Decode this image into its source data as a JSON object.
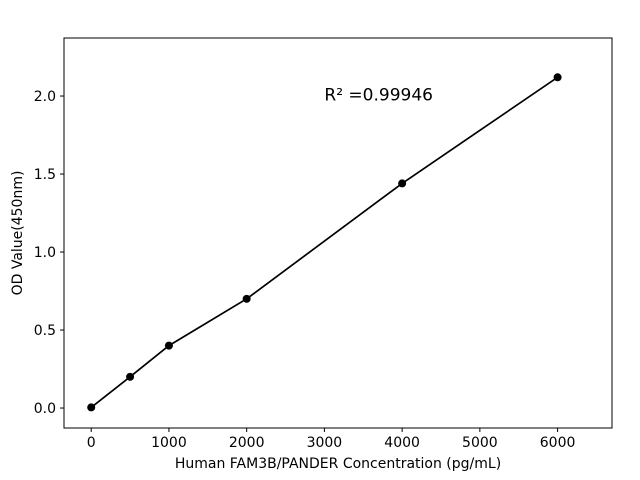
{
  "chart_data": {
    "type": "scatter",
    "title": "",
    "xlabel": "Human FAM3B/PANDER Concentration (pg/mL)",
    "ylabel": "OD Value(450nm)",
    "x": [
      0,
      500,
      1000,
      2000,
      4000,
      6000
    ],
    "y": [
      0.004,
      0.2,
      0.4,
      0.7,
      1.44,
      2.12
    ],
    "line_through_points": true,
    "xlim": [
      -350,
      6700
    ],
    "ylim": [
      -0.128,
      2.372
    ],
    "xticks": {
      "values": [
        0,
        1000,
        2000,
        3000,
        4000,
        5000,
        6000
      ],
      "labels": [
        "0",
        "1000",
        "2000",
        "3000",
        "4000",
        "5000",
        "6000"
      ]
    },
    "yticks": {
      "values": [
        0.0,
        0.5,
        1.0,
        1.5,
        2.0
      ],
      "labels": [
        "0.0",
        "0.5",
        "1.0",
        "1.5",
        "2.0"
      ]
    },
    "annotation": {
      "text": "R² =0.99946",
      "x": 3000,
      "y": 1.97
    },
    "legend": "none",
    "grid": false,
    "colors": {
      "line": "#000000",
      "marker": "#000000",
      "axis": "#000000",
      "background": "#ffffff"
    }
  }
}
